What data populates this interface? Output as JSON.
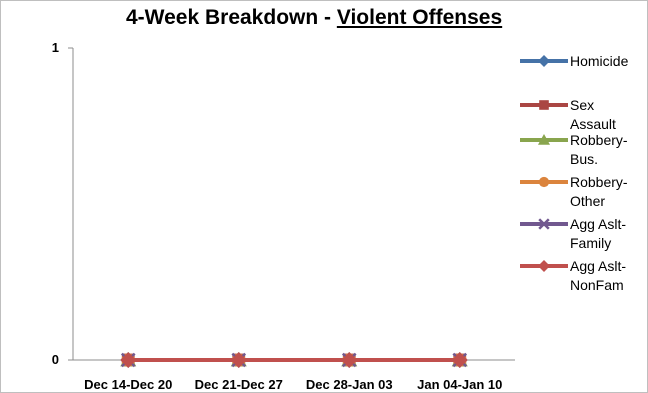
{
  "chart_data": {
    "type": "line",
    "title_prefix": "4-Week Breakdown - ",
    "title_underlined": "Violent Offenses",
    "categories": [
      "Dec 14-Dec 20",
      "Dec 21-Dec 27",
      "Dec 28-Jan 03",
      "Jan 04-Jan 10"
    ],
    "ylim": [
      0,
      1
    ],
    "yticks": [
      "0",
      "1"
    ],
    "grid": false,
    "legend_position": "right",
    "series": [
      {
        "name": "Homicide",
        "values": [
          0,
          0,
          0,
          0
        ],
        "color": "#4572a7",
        "marker": "diamond"
      },
      {
        "name": "Sex Assault",
        "values": [
          0,
          0,
          0,
          0
        ],
        "color": "#aa4643",
        "marker": "square"
      },
      {
        "name": "Robbery-Bus.",
        "values": [
          0,
          0,
          0,
          0
        ],
        "color": "#89a54e",
        "marker": "triangle"
      },
      {
        "name": "Robbery-Other",
        "values": [
          0,
          0,
          0,
          0
        ],
        "color": "#db843d",
        "marker": "circle"
      },
      {
        "name": "Agg Aslt-Family",
        "values": [
          0,
          0,
          0,
          0
        ],
        "color": "#71588f",
        "marker": "x"
      },
      {
        "name": "Agg Aslt-NonFam",
        "values": [
          0,
          0,
          0,
          0
        ],
        "color": "#c0504d",
        "marker": "diamond"
      }
    ],
    "legend_lines": [
      [
        "Homicide"
      ],
      [
        "Sex",
        "Assault"
      ],
      [
        "Robbery-",
        "Bus."
      ],
      [
        "Robbery-",
        "Other"
      ],
      [
        "Agg Aslt-",
        "Family"
      ],
      [
        "Agg Aslt-",
        "NonFam"
      ]
    ]
  }
}
